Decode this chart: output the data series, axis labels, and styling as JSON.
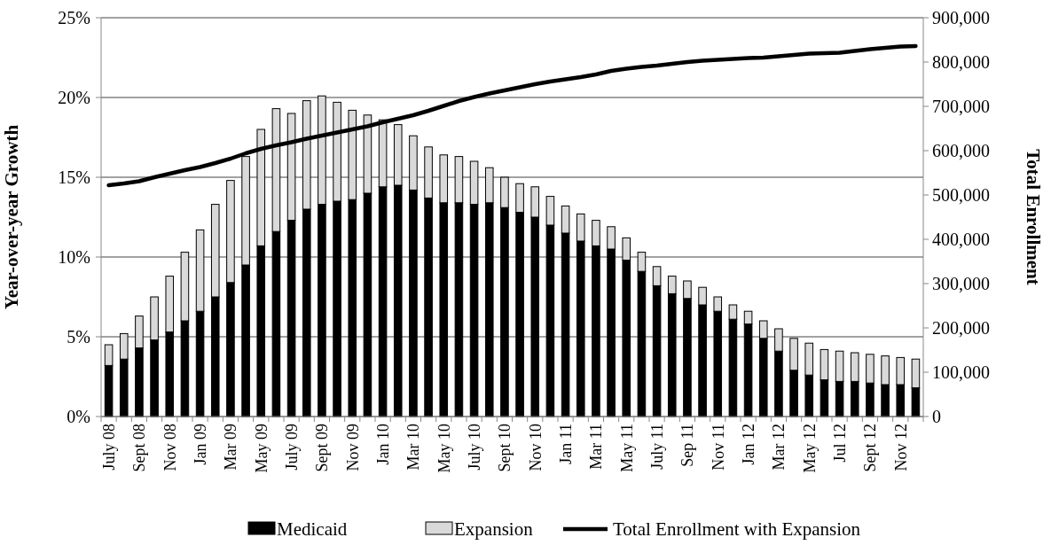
{
  "chart_data": {
    "type": "bar",
    "stacked": true,
    "ylabel": "Year-over-year Growth",
    "y2label": "Total Enrollment",
    "categories": [
      "July 08",
      null,
      "Sept 08",
      null,
      "Nov 08",
      null,
      "Jan 09",
      null,
      "Mar 09",
      null,
      "May 09",
      null,
      "July 09",
      null,
      "Sept 09",
      null,
      "Nov 09",
      null,
      "Jan 10",
      null,
      "Mar 10",
      null,
      "May 10",
      null,
      "July 10",
      null,
      "Sept 10",
      null,
      "Nov 10",
      null,
      "Jan 11",
      null,
      "Mar 11",
      null,
      "May 11",
      null,
      "July 11",
      null,
      "Sep 11",
      null,
      "Nov 11",
      null,
      "Jan 12",
      null,
      "Mar 12",
      null,
      "May 12",
      null,
      "Jul 12",
      null,
      "Sept 12",
      null,
      "Nov 12",
      null
    ],
    "series": [
      {
        "name": "Medicaid",
        "color": "#000000",
        "values": [
          3.2,
          3.6,
          4.3,
          4.8,
          5.3,
          6.0,
          6.6,
          7.5,
          8.4,
          9.5,
          10.7,
          11.6,
          12.3,
          13.0,
          13.3,
          13.5,
          13.6,
          14.0,
          14.4,
          14.5,
          14.2,
          13.7,
          13.4,
          13.4,
          13.3,
          13.4,
          13.1,
          12.8,
          12.5,
          12.0,
          11.5,
          11.0,
          10.7,
          10.5,
          9.8,
          9.1,
          8.2,
          7.7,
          7.4,
          7.0,
          6.6,
          6.1,
          5.8,
          4.9,
          4.1,
          2.9,
          2.6,
          2.3,
          2.2,
          2.2,
          2.1,
          2.0,
          2.0,
          1.8
        ]
      },
      {
        "name": "Expansion",
        "color": "#d9d9d9",
        "values": [
          1.3,
          1.6,
          2.0,
          2.7,
          3.5,
          4.3,
          5.1,
          5.8,
          6.4,
          6.8,
          7.3,
          7.7,
          6.7,
          6.8,
          6.8,
          6.2,
          5.6,
          4.9,
          4.2,
          3.8,
          3.4,
          3.2,
          3.0,
          2.9,
          2.7,
          2.2,
          1.9,
          1.8,
          1.9,
          1.8,
          1.7,
          1.7,
          1.6,
          1.4,
          1.4,
          1.2,
          1.2,
          1.1,
          1.1,
          1.1,
          0.9,
          0.9,
          0.8,
          1.1,
          1.4,
          2.0,
          2.0,
          1.9,
          1.9,
          1.8,
          1.8,
          1.8,
          1.7,
          1.8
        ]
      },
      {
        "name": "Total Enrollment with Expansion",
        "type": "line",
        "axis": "y2",
        "color": "#000000",
        "values": [
          522000,
          526000,
          531000,
          540000,
          548000,
          556000,
          563000,
          572000,
          582000,
          594000,
          604000,
          612000,
          619000,
          627000,
          634000,
          641000,
          648000,
          655000,
          664000,
          672000,
          680000,
          690000,
          701000,
          712000,
          721000,
          729000,
          736000,
          743000,
          750000,
          756000,
          761000,
          766000,
          772000,
          780000,
          785000,
          789000,
          792000,
          796000,
          800000,
          803000,
          805000,
          807000,
          809000,
          810000,
          813000,
          816000,
          819000,
          820000,
          821000,
          825000,
          829000,
          832000,
          835000,
          836000
        ]
      }
    ],
    "ylim": [
      0,
      25
    ],
    "yticks": [
      {
        "value": 0,
        "label": "0%"
      },
      {
        "value": 5,
        "label": "5%"
      },
      {
        "value": 10,
        "label": "10%"
      },
      {
        "value": 15,
        "label": "15%"
      },
      {
        "value": 20,
        "label": "20%"
      },
      {
        "value": 25,
        "label": "25%"
      }
    ],
    "y2lim": [
      0,
      900000
    ],
    "y2ticks": [
      {
        "value": 0,
        "label": "0"
      },
      {
        "value": 100000,
        "label": "100,000"
      },
      {
        "value": 200000,
        "label": "200,000"
      },
      {
        "value": 300000,
        "label": "300,000"
      },
      {
        "value": 400000,
        "label": "400,000"
      },
      {
        "value": 500000,
        "label": "500,000"
      },
      {
        "value": 600000,
        "label": "600,000"
      },
      {
        "value": 700000,
        "label": "700,000"
      },
      {
        "value": 800000,
        "label": "800,000"
      },
      {
        "value": 900000,
        "label": "900,000"
      }
    ],
    "grid": "y",
    "legend": "bottom"
  }
}
